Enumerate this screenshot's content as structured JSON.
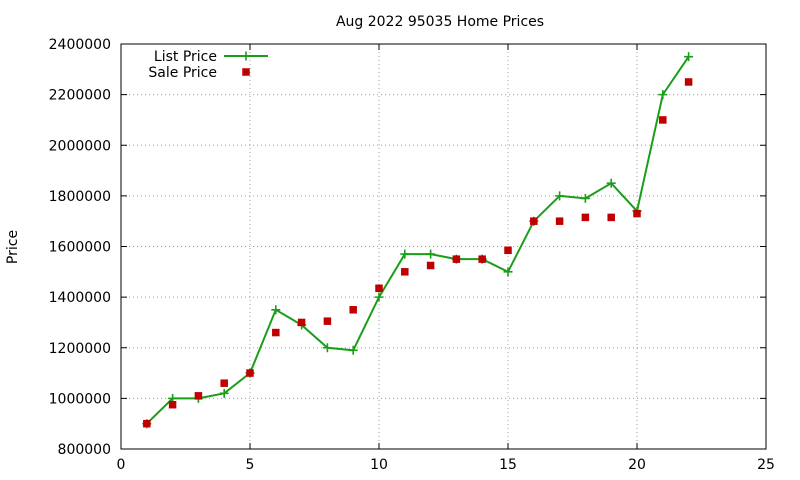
{
  "chart_data": {
    "type": "line",
    "title": "Aug 2022 95035 Home Prices",
    "xlabel": "",
    "ylabel": "Price",
    "xlim": [
      0,
      25
    ],
    "ylim": [
      800000,
      2400000
    ],
    "xticks": [
      0,
      5,
      10,
      15,
      20,
      25
    ],
    "yticks": [
      800000,
      1000000,
      1200000,
      1400000,
      1600000,
      1800000,
      2000000,
      2200000,
      2400000
    ],
    "grid": true,
    "legend_position": "top-left",
    "series": [
      {
        "name": "List Price",
        "style": "line-points",
        "color": "#1a9e1a",
        "x": [
          1,
          2,
          3,
          4,
          5,
          6,
          7,
          8,
          9,
          10,
          11,
          12,
          13,
          14,
          15,
          16,
          17,
          18,
          19,
          20,
          21,
          22
        ],
        "y": [
          900000,
          1000000,
          1000000,
          1020000,
          1100000,
          1350000,
          1290000,
          1200000,
          1190000,
          1400000,
          1570000,
          1570000,
          1550000,
          1550000,
          1500000,
          1700000,
          1800000,
          1790000,
          1850000,
          1740000,
          2200000,
          2350000
        ]
      },
      {
        "name": "Sale Price",
        "style": "points",
        "color": "#c00000",
        "x": [
          1,
          2,
          3,
          4,
          5,
          6,
          7,
          8,
          9,
          10,
          11,
          12,
          13,
          14,
          15,
          16,
          17,
          18,
          19,
          20,
          21,
          22
        ],
        "y": [
          900000,
          975000,
          1010000,
          1060000,
          1100000,
          1260000,
          1300000,
          1305000,
          1350000,
          1435000,
          1500000,
          1525000,
          1550000,
          1550000,
          1585000,
          1700000,
          1700000,
          1715000,
          1715000,
          1730000,
          2100000,
          2250000
        ]
      }
    ]
  }
}
